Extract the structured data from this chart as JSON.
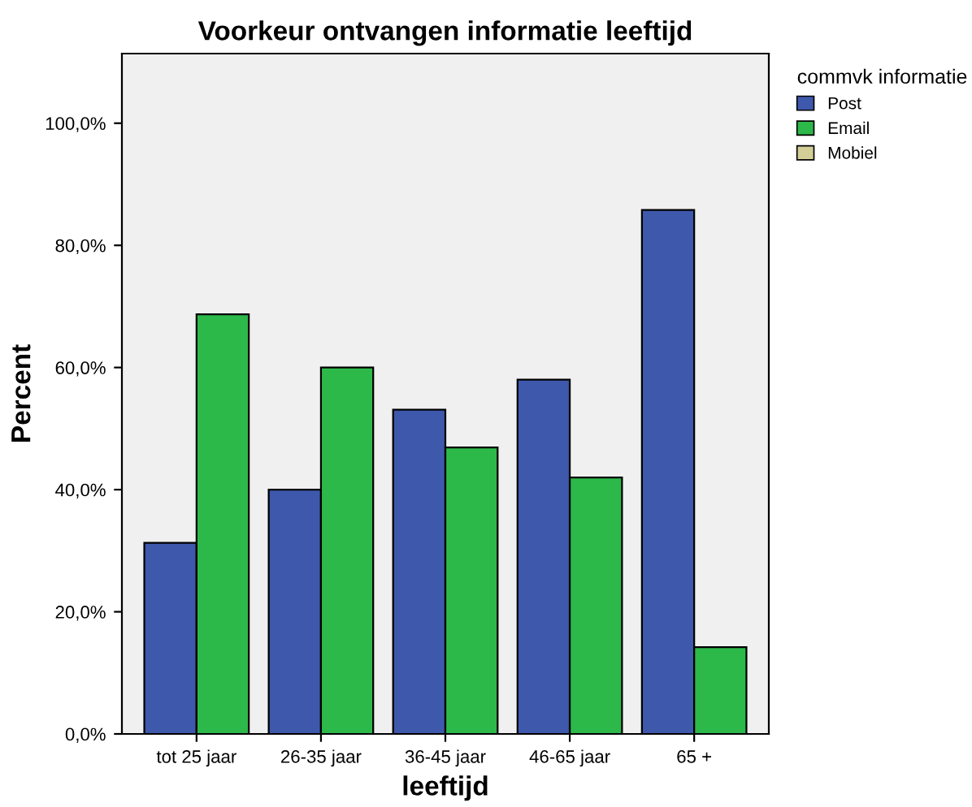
{
  "chart_data": {
    "type": "bar",
    "title": "Voorkeur ontvangen informatie leeftijd",
    "xlabel": "leeftijd",
    "ylabel": "Percent",
    "legend_title": "commvk informatie",
    "legend": "right",
    "grid": false,
    "categories": [
      "tot 25 jaar",
      "26-35 jaar",
      "36-45 jaar",
      "46-65 jaar",
      "65 +"
    ],
    "series": [
      {
        "name": "Post",
        "color": "#3e58ac",
        "values": [
          31.3,
          40.0,
          53.1,
          58.0,
          85.8
        ]
      },
      {
        "name": "Email",
        "color": "#2db84a",
        "values": [
          68.7,
          60.0,
          46.9,
          42.0,
          14.2
        ]
      },
      {
        "name": "Mobiel",
        "color": "#d3ce97",
        "values": [
          null,
          null,
          null,
          null,
          null
        ]
      }
    ],
    "ylim": [
      0,
      111.4
    ],
    "yticks": [
      {
        "value": 0,
        "label": "0,0%"
      },
      {
        "value": 20,
        "label": "20,0%"
      },
      {
        "value": 40,
        "label": "40,0%"
      },
      {
        "value": 60,
        "label": "60,0%"
      },
      {
        "value": 80,
        "label": "80,0%"
      },
      {
        "value": 100,
        "label": "100,0%"
      }
    ]
  }
}
